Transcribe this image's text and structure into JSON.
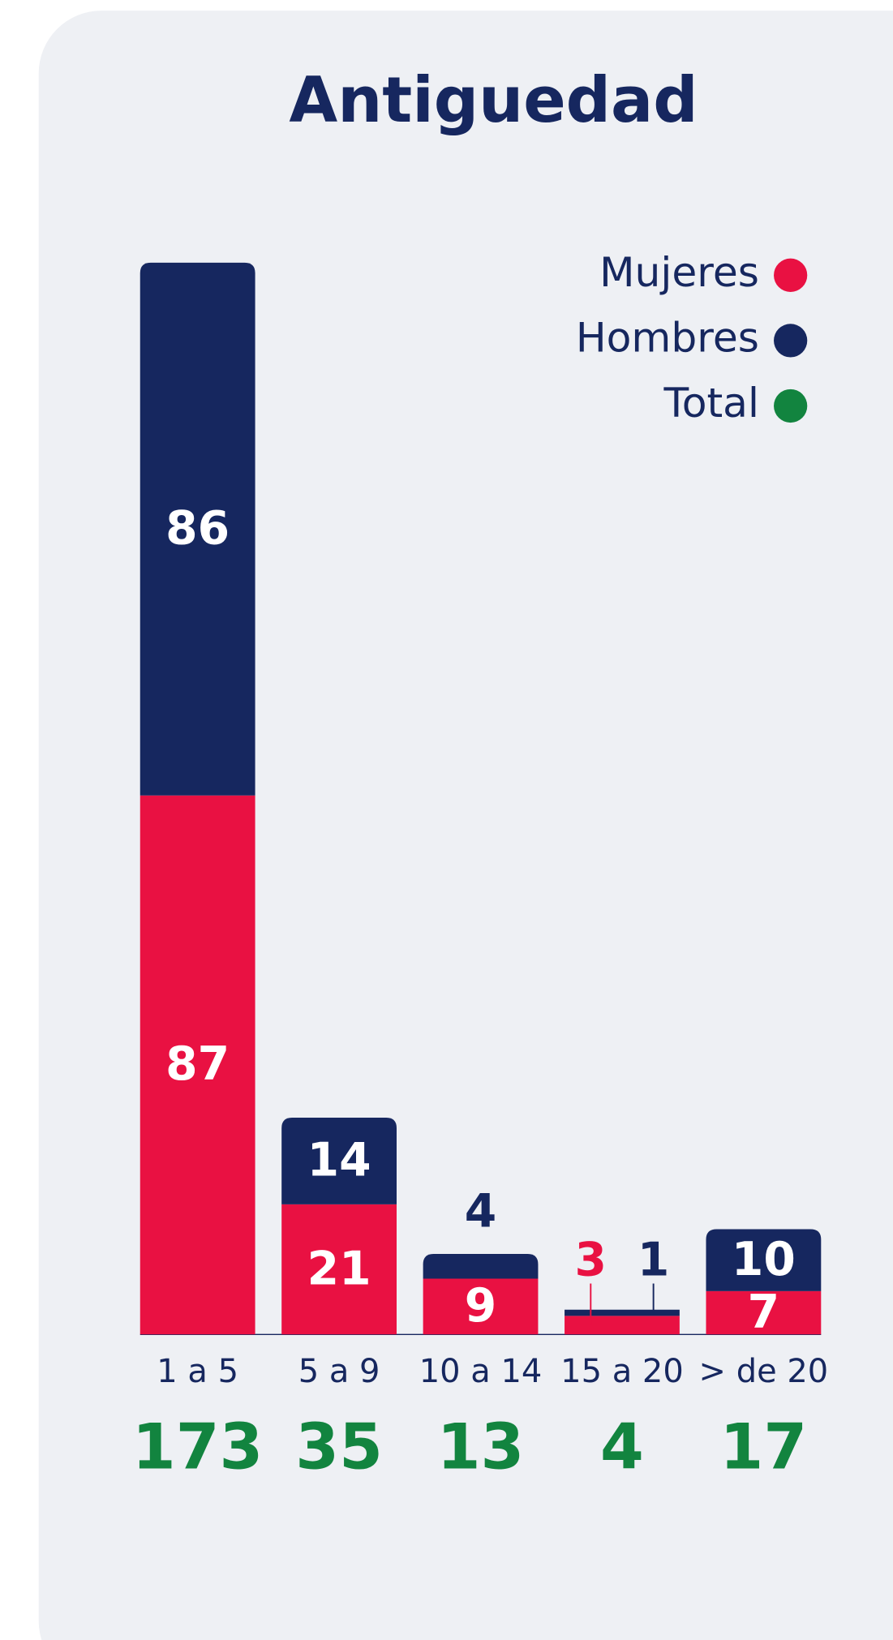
{
  "chart_data": {
    "type": "stacked_bar",
    "title": "Antiguedad",
    "categories": [
      "1 a 5",
      "5 a 9",
      "10 a 14",
      "15 a 20",
      "> de 20"
    ],
    "series": [
      {
        "name": "Mujeres",
        "color": "#e91142",
        "values": [
          87,
          21,
          9,
          3,
          7
        ]
      },
      {
        "name": "Hombres",
        "color": "#16275f",
        "values": [
          86,
          14,
          4,
          1,
          10
        ]
      },
      {
        "name": "Total",
        "color": "#12843f",
        "values": [
          173,
          35,
          13,
          4,
          17
        ]
      }
    ],
    "legend": "top-right"
  }
}
